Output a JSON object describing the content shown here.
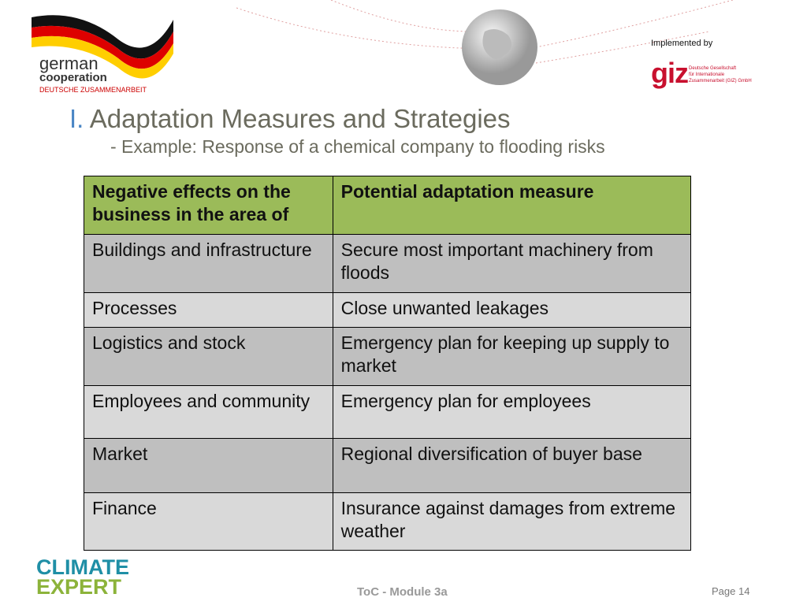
{
  "header": {
    "partner": {
      "name": "german",
      "line2": "cooperation",
      "line3": "DEUTSCHE ZUSAMMENARBEIT"
    },
    "implemented_by": "Implemented by",
    "giz": {
      "name": "giz",
      "lines": [
        "Deutsche Gesellschaft",
        "für Internationale",
        "Zusammenarbeit (GIZ) GmbH"
      ]
    }
  },
  "slide": {
    "number": "I.",
    "title": "Adaptation Measures and Strategies",
    "subtitle": "- Example: Response of a chemical company to flooding risks"
  },
  "table": {
    "header": [
      "Negative effects on the business in the area of",
      "Potential adaptation measure"
    ],
    "rows": [
      [
        "Buildings and infrastructure",
        "Secure most important machinery from floods"
      ],
      [
        "Processes",
        "Close unwanted leakages"
      ],
      [
        "Logistics and stock",
        "Emergency plan for keeping up supply to market"
      ],
      [
        "Employees and community",
        "Emergency plan for employees"
      ],
      [
        "Market",
        "Regional diversification of buyer base"
      ],
      [
        "Finance",
        "Insurance against damages from extreme weather"
      ]
    ]
  },
  "footer": {
    "logo": [
      "CLIMATE",
      "EXPERT"
    ],
    "module": "ToC - Module 3a",
    "page": "Page 14"
  }
}
